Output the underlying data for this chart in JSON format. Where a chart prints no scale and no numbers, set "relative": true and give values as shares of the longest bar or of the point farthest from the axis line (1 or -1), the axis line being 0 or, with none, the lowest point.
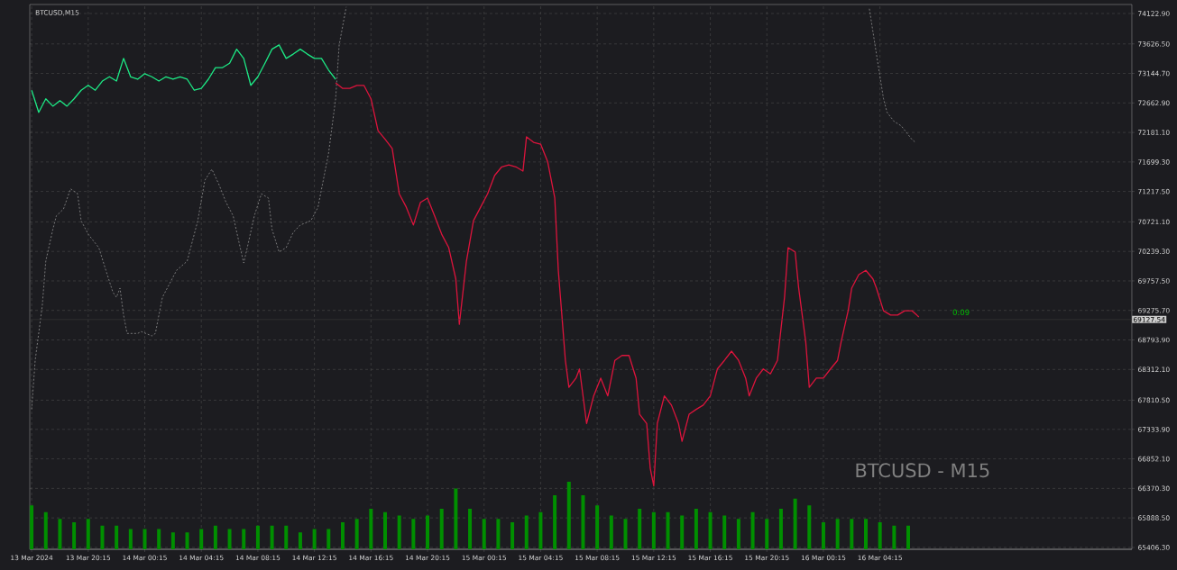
{
  "chart_data": [
    {
      "type": "line",
      "title": "BTCUSD,M15",
      "annotations": [
        "BTCUSD - M15",
        "0:09"
      ],
      "xlim": [
        "2024-03-13T16:07",
        "2024-03-16T22:04"
      ],
      "ylim": [
        65376,
        74270
      ],
      "xticks": [
        {
          "value": "2024-03-13T16:15",
          "label": "13 Mar 2024"
        },
        {
          "value": "2024-03-13T20:15",
          "label": "13 Mar 20:15"
        },
        {
          "value": "2024-03-14T00:15",
          "label": "14 Mar 00:15"
        },
        {
          "value": "2024-03-14T04:15",
          "label": "14 Mar 04:15"
        },
        {
          "value": "2024-03-14T08:15",
          "label": "14 Mar 08:15"
        },
        {
          "value": "2024-03-14T12:15",
          "label": "14 Mar 12:15"
        },
        {
          "value": "2024-03-14T16:15",
          "label": "14 Mar 16:15"
        },
        {
          "value": "2024-03-14T20:15",
          "label": "14 Mar 20:15"
        },
        {
          "value": "2024-03-15T00:15",
          "label": "15 Mar 00:15"
        },
        {
          "value": "2024-03-15T04:15",
          "label": "15 Mar 04:15"
        },
        {
          "value": "2024-03-15T08:15",
          "label": "15 Mar 08:15"
        },
        {
          "value": "2024-03-15T12:15",
          "label": "15 Mar 12:15"
        },
        {
          "value": "2024-03-15T16:15",
          "label": "15 Mar 16:15"
        },
        {
          "value": "2024-03-15T20:15",
          "label": "15 Mar 20:15"
        },
        {
          "value": "2024-03-16T00:15",
          "label": "16 Mar 00:15"
        },
        {
          "value": "2024-03-16T04:15",
          "label": "16 Mar 04:15"
        }
      ],
      "yticks": [
        {
          "value": 74122.9,
          "label": "74122.90"
        },
        {
          "value": 73626.5,
          "label": "73626.50"
        },
        {
          "value": 73144.7,
          "label": "73144.70"
        },
        {
          "value": 72662.9,
          "label": "72662.90"
        },
        {
          "value": 72181.1,
          "label": "72181.10"
        },
        {
          "value": 71699.3,
          "label": "71699.30"
        },
        {
          "value": 71217.5,
          "label": "71217.50"
        },
        {
          "value": 70721.1,
          "label": "70721.10"
        },
        {
          "value": 70239.3,
          "label": "70239.30"
        },
        {
          "value": 69757.5,
          "label": "69757.50"
        },
        {
          "value": 69275.7,
          "label": "69275.70"
        },
        {
          "value": 68793.9,
          "label": "68793.90"
        },
        {
          "value": 68312.1,
          "label": "68312.10"
        },
        {
          "value": 67810.5,
          "label": "67810.50"
        },
        {
          "value": 67333.9,
          "label": "67333.90"
        },
        {
          "value": 66852.1,
          "label": "66852.10"
        },
        {
          "value": 66370.3,
          "label": "66370.30"
        },
        {
          "value": 65888.5,
          "label": "65888.50"
        },
        {
          "value": 65406.3,
          "label": "65406.30"
        }
      ],
      "grid": true,
      "marker": "none",
      "ref_lines": [
        {
          "axis": "y",
          "value": 69127.54,
          "label": "69127.54",
          "color": "#3a3a3a"
        }
      ],
      "series": [
        {
          "type": "line",
          "color": "#a0a0a0",
          "line_style": "dashed",
          "x": [
            "2024-03-13T16:15",
            "2024-03-13T16:30",
            "2024-03-13T17:00",
            "2024-03-13T17:15",
            "2024-03-13T17:45",
            "2024-03-13T18:00",
            "2024-03-13T18:30",
            "2024-03-13T19:00",
            "2024-03-13T19:30",
            "2024-03-13T19:45",
            "2024-03-13T20:15",
            "2024-03-13T21:00",
            "2024-03-13T21:30",
            "2024-03-13T22:00",
            "2024-03-13T22:15",
            "2024-03-13T22:30",
            "2024-03-13T22:45",
            "2024-03-13T23:00",
            "2024-03-13T23:45",
            "2024-03-14T00:00",
            "2024-03-14T00:45",
            "2024-03-14T01:00",
            "2024-03-14T01:15",
            "2024-03-14T01:30",
            "2024-03-14T02:00",
            "2024-03-14T02:30",
            "2024-03-14T03:15",
            "2024-03-14T03:30",
            "2024-03-14T04:00",
            "2024-03-14T04:30",
            "2024-03-14T05:00",
            "2024-03-14T05:30",
            "2024-03-14T06:00",
            "2024-03-14T06:30",
            "2024-03-14T07:00",
            "2024-03-14T07:15",
            "2024-03-14T07:30",
            "2024-03-14T08:00",
            "2024-03-14T08:30",
            "2024-03-14T09:00",
            "2024-03-14T09:15",
            "2024-03-14T09:45",
            "2024-03-14T10:15",
            "2024-03-14T10:45",
            "2024-03-14T11:15",
            "2024-03-14T12:00",
            "2024-03-14T12:30",
            "2024-03-14T13:15",
            "2024-03-14T13:45",
            "2024-03-14T14:00",
            "2024-03-14T14:30",
            "2024-03-15T07:00",
            "2024-03-16T03:30",
            "2024-03-16T04:00",
            "2024-03-16T04:30",
            "2024-03-16T04:45",
            "2024-03-16T05:15",
            "2024-03-16T05:45",
            "2024-03-16T06:30",
            "2024-03-16T06:45"
          ],
          "values": [
            67660,
            68460,
            69350,
            70080,
            70600,
            70820,
            70930,
            71260,
            71180,
            70740,
            70520,
            70300,
            69930,
            69570,
            69490,
            69640,
            69200,
            68900,
            68900,
            68930,
            68860,
            68900,
            69200,
            69490,
            69710,
            69930,
            70080,
            70300,
            70740,
            71400,
            71580,
            71330,
            71040,
            70820,
            70300,
            70050,
            70300,
            70820,
            71180,
            71110,
            70600,
            70230,
            70300,
            70550,
            70670,
            70740,
            70960,
            71840,
            72730,
            73610,
            74230,
            null,
            74200,
            73460,
            72730,
            72510,
            72360,
            72290,
            72070,
            72020
          ]
        },
        {
          "type": "line",
          "color": "#1de985",
          "line_style": "solid",
          "x": [
            "2024-03-13T16:15",
            "2024-03-13T16:45",
            "2024-03-13T17:15",
            "2024-03-13T17:45",
            "2024-03-13T18:15",
            "2024-03-13T18:45",
            "2024-03-13T19:15",
            "2024-03-13T19:45",
            "2024-03-13T20:15",
            "2024-03-13T20:45",
            "2024-03-13T21:15",
            "2024-03-13T21:45",
            "2024-03-13T22:15",
            "2024-03-13T22:45",
            "2024-03-13T23:15",
            "2024-03-13T23:45",
            "2024-03-14T00:15",
            "2024-03-14T00:45",
            "2024-03-14T01:15",
            "2024-03-14T01:45",
            "2024-03-14T02:15",
            "2024-03-14T02:45",
            "2024-03-14T03:15",
            "2024-03-14T03:45",
            "2024-03-14T04:15",
            "2024-03-14T04:45",
            "2024-03-14T05:15",
            "2024-03-14T05:45",
            "2024-03-14T06:15",
            "2024-03-14T06:45",
            "2024-03-14T07:15",
            "2024-03-14T07:45",
            "2024-03-14T08:15",
            "2024-03-14T08:45",
            "2024-03-14T09:15",
            "2024-03-14T09:45",
            "2024-03-14T10:15",
            "2024-03-14T10:45",
            "2024-03-14T11:15",
            "2024-03-14T11:45",
            "2024-03-14T12:15",
            "2024-03-14T12:45",
            "2024-03-14T13:15",
            "2024-03-14T13:45"
          ],
          "values": [
            72870,
            72510,
            72730,
            72610,
            72700,
            72610,
            72730,
            72870,
            72950,
            72870,
            73020,
            73090,
            73020,
            73390,
            73090,
            73050,
            73140,
            73090,
            73020,
            73090,
            73050,
            73090,
            73050,
            72870,
            72900,
            73050,
            73240,
            73240,
            73310,
            73540,
            73390,
            72950,
            73090,
            73310,
            73540,
            73610,
            73390,
            73460,
            73540,
            73460,
            73390,
            73390,
            73200,
            73050
          ]
        },
        {
          "type": "line",
          "color": "#dc143c",
          "line_style": "solid",
          "x": [
            "2024-03-14T13:45",
            "2024-03-14T14:15",
            "2024-03-14T14:45",
            "2024-03-14T15:15",
            "2024-03-14T15:45",
            "2024-03-14T16:15",
            "2024-03-14T16:45",
            "2024-03-14T17:15",
            "2024-03-14T17:45",
            "2024-03-14T18:15",
            "2024-03-14T18:45",
            "2024-03-14T19:15",
            "2024-03-14T19:45",
            "2024-03-14T20:15",
            "2024-03-14T20:45",
            "2024-03-14T21:15",
            "2024-03-14T21:45",
            "2024-03-14T22:15",
            "2024-03-14T22:30",
            "2024-03-14T23:00",
            "2024-03-14T23:30",
            "2024-03-15T00:00",
            "2024-03-15T00:30",
            "2024-03-15T01:00",
            "2024-03-15T01:30",
            "2024-03-15T02:00",
            "2024-03-15T02:30",
            "2024-03-15T03:00",
            "2024-03-15T03:15",
            "2024-03-15T03:45",
            "2024-03-15T04:15",
            "2024-03-15T04:45",
            "2024-03-15T05:15",
            "2024-03-15T05:30",
            "2024-03-15T05:45",
            "2024-03-15T06:00",
            "2024-03-15T06:15",
            "2024-03-15T06:45",
            "2024-03-15T07:00",
            "2024-03-15T07:30",
            "2024-03-15T08:00",
            "2024-03-15T08:30",
            "2024-03-15T09:00",
            "2024-03-15T09:30",
            "2024-03-15T10:00",
            "2024-03-15T10:30",
            "2024-03-15T11:00",
            "2024-03-15T11:15",
            "2024-03-15T11:45",
            "2024-03-15T12:00",
            "2024-03-15T12:15",
            "2024-03-15T12:30",
            "2024-03-15T13:00",
            "2024-03-15T13:30",
            "2024-03-15T14:00",
            "2024-03-15T14:15",
            "2024-03-15T14:45",
            "2024-03-15T15:15",
            "2024-03-15T15:45",
            "2024-03-15T16:15",
            "2024-03-15T16:45",
            "2024-03-15T17:15",
            "2024-03-15T17:45",
            "2024-03-15T18:15",
            "2024-03-15T18:45",
            "2024-03-15T19:00",
            "2024-03-15T19:30",
            "2024-03-15T20:00",
            "2024-03-15T20:30",
            "2024-03-15T21:00",
            "2024-03-15T21:30",
            "2024-03-15T21:45",
            "2024-03-15T22:15",
            "2024-03-15T22:30",
            "2024-03-15T23:00",
            "2024-03-15T23:15",
            "2024-03-15T23:45",
            "2024-03-16T00:15",
            "2024-03-16T00:45",
            "2024-03-16T01:15",
            "2024-03-16T01:30",
            "2024-03-16T02:00",
            "2024-03-16T02:15",
            "2024-03-16T02:45",
            "2024-03-16T03:15",
            "2024-03-16T03:45",
            "2024-03-16T04:00",
            "2024-03-16T04:30",
            "2024-03-16T05:00",
            "2024-03-16T05:30",
            "2024-03-16T06:00",
            "2024-03-16T06:30",
            "2024-03-16T07:00"
          ],
          "values": [
            72990,
            72900,
            72900,
            72950,
            72950,
            72730,
            72210,
            72070,
            71920,
            71180,
            70960,
            70670,
            71040,
            71110,
            70820,
            70520,
            70300,
            69790,
            69050,
            70080,
            70740,
            70960,
            71180,
            71480,
            71620,
            71650,
            71620,
            71550,
            72110,
            72020,
            71990,
            71700,
            71110,
            69930,
            69200,
            68460,
            68020,
            68170,
            68320,
            67430,
            67880,
            68170,
            67880,
            68460,
            68540,
            68540,
            68170,
            67580,
            67430,
            66700,
            66410,
            67430,
            67880,
            67730,
            67430,
            67140,
            67580,
            67660,
            67730,
            67880,
            68320,
            68460,
            68610,
            68460,
            68170,
            67880,
            68170,
            68320,
            68240,
            68460,
            69490,
            70300,
            70230,
            69640,
            68760,
            68020,
            68170,
            68170,
            68320,
            68460,
            68760,
            69270,
            69640,
            69860,
            69930,
            69790,
            69640,
            69270,
            69200,
            69200,
            69270,
            69270,
            69170
          ]
        }
      ]
    },
    {
      "type": "bar",
      "relative": true,
      "color": "#008f00",
      "categories": [
        null,
        null,
        null,
        null,
        null,
        null,
        null,
        null,
        null,
        null,
        null,
        null,
        null,
        null,
        null,
        null,
        null,
        null,
        null,
        null,
        null,
        null,
        null,
        null,
        null,
        null,
        null,
        null,
        null,
        null,
        null,
        null,
        null,
        null,
        null,
        null,
        null,
        null,
        null,
        null,
        null,
        null,
        null,
        null,
        null,
        null,
        null,
        null,
        null,
        null,
        null,
        null,
        null,
        null,
        null,
        null,
        null,
        null,
        null,
        null,
        null,
        null,
        null
      ],
      "values": [
        0.65,
        0.55,
        0.45,
        0.4,
        0.45,
        0.35,
        0.35,
        0.3,
        0.3,
        0.3,
        0.25,
        0.25,
        0.3,
        0.35,
        0.3,
        0.3,
        0.35,
        0.35,
        0.35,
        0.25,
        0.3,
        0.3,
        0.4,
        0.45,
        0.6,
        0.55,
        0.5,
        0.45,
        0.5,
        0.6,
        0.9,
        0.6,
        0.45,
        0.45,
        0.4,
        0.5,
        0.55,
        0.8,
        1,
        0.8,
        0.65,
        0.5,
        0.45,
        0.6,
        0.55,
        0.55,
        0.5,
        0.6,
        0.55,
        0.5,
        0.45,
        0.55,
        0.45,
        0.6,
        0.75,
        0.65,
        0.4,
        0.45,
        0.45,
        0.45,
        0.4,
        0.35,
        0.35
      ]
    }
  ]
}
